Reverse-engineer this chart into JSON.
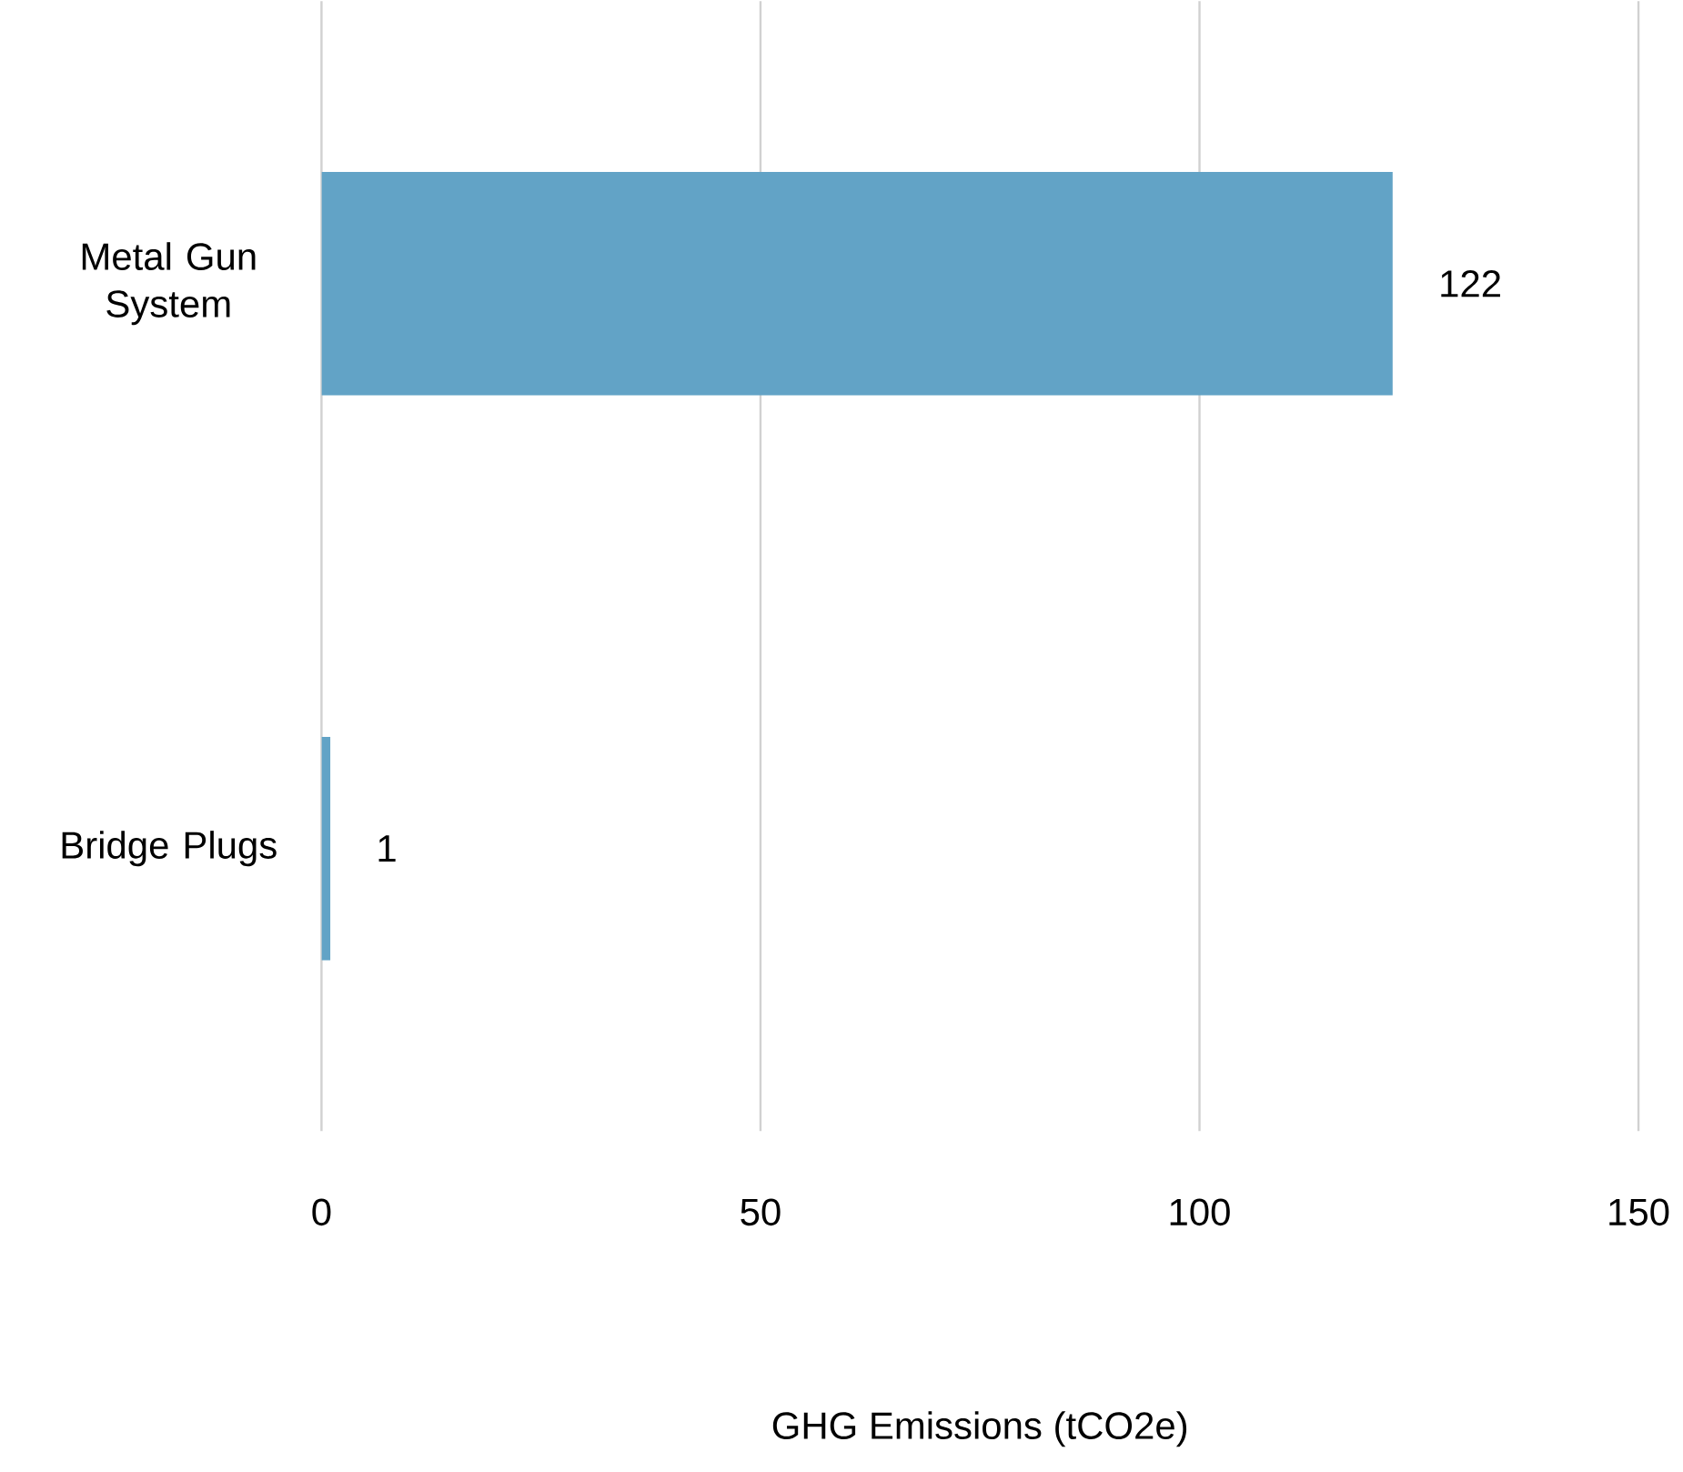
{
  "chart_data": {
    "type": "bar",
    "orientation": "horizontal",
    "xlabel": "GHG Emissions (tCO2e)",
    "categories": [
      "Metal Gun System",
      "Bridge Plugs"
    ],
    "values": [
      122,
      1
    ],
    "color": "#62a3c6",
    "xlim": [
      0,
      150
    ],
    "xticks": [
      0,
      50,
      100,
      150
    ],
    "grid": "x",
    "data_labels": true
  }
}
